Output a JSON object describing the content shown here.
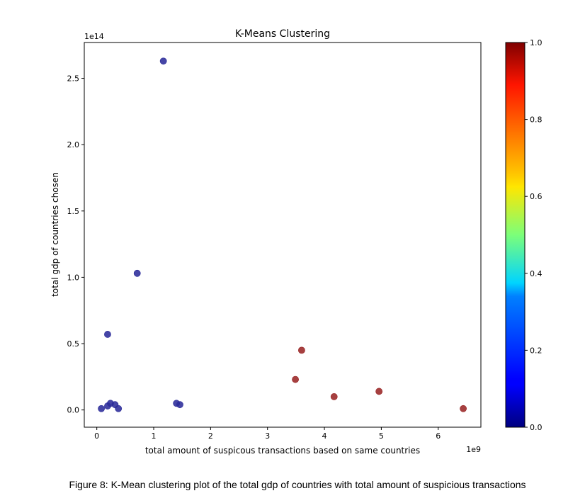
{
  "chart_data": {
    "type": "scatter",
    "title": "K-Means Clustering",
    "xlabel": "total amount of suspicous transactions based on same countries",
    "ylabel": "total gdp of countries chosen",
    "x_offset_label": "1e9",
    "y_offset_label": "1e14",
    "xlim": [
      -0.22,
      6.75
    ],
    "ylim": [
      -0.13,
      2.77
    ],
    "xticks": [
      "0",
      "1",
      "2",
      "3",
      "4",
      "5",
      "6"
    ],
    "yticks": [
      "0.0",
      "0.5",
      "1.0",
      "1.5",
      "2.0",
      "2.5"
    ],
    "colormap": "jet",
    "colorbar_ticks": [
      "0.0",
      "0.2",
      "0.4",
      "0.6",
      "0.8",
      "1.0"
    ],
    "series": [
      {
        "cluster": 0,
        "color": "#2b2b9a",
        "points": [
          {
            "x": 1.17,
            "y": 2.63
          },
          {
            "x": 0.71,
            "y": 1.03
          },
          {
            "x": 0.19,
            "y": 0.57
          },
          {
            "x": 0.08,
            "y": 0.01
          },
          {
            "x": 0.19,
            "y": 0.03
          },
          {
            "x": 0.24,
            "y": 0.05
          },
          {
            "x": 0.32,
            "y": 0.04
          },
          {
            "x": 0.38,
            "y": 0.01
          },
          {
            "x": 1.4,
            "y": 0.05
          },
          {
            "x": 1.46,
            "y": 0.04
          }
        ]
      },
      {
        "cluster": 1,
        "color": "#9a2525",
        "points": [
          {
            "x": 3.6,
            "y": 0.45
          },
          {
            "x": 3.49,
            "y": 0.23
          },
          {
            "x": 4.17,
            "y": 0.1
          },
          {
            "x": 4.96,
            "y": 0.14
          },
          {
            "x": 6.44,
            "y": 0.01
          }
        ]
      }
    ]
  },
  "caption": "Figure 8: K-Mean clustering plot of the total gdp of countries with total amount of suspicious transactions"
}
